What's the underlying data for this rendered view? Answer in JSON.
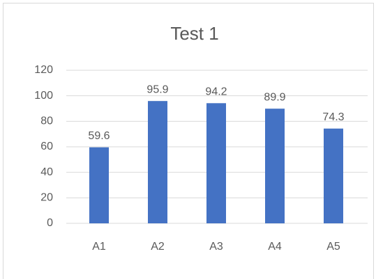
{
  "chart_data": {
    "type": "bar",
    "title": "Test 1",
    "categories": [
      "A1",
      "A2",
      "A3",
      "A4",
      "A5"
    ],
    "values": [
      59.6,
      95.9,
      94.2,
      89.9,
      74.3
    ],
    "color": "#4472c4",
    "ylim": [
      0,
      120
    ],
    "yticks": [
      0,
      20,
      40,
      60,
      80,
      100,
      120
    ],
    "grid": true
  }
}
